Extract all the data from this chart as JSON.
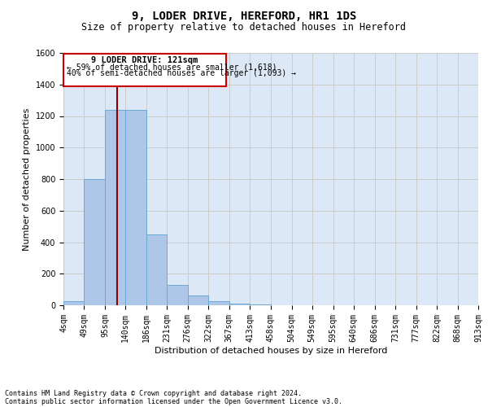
{
  "title_line1": "9, LODER DRIVE, HEREFORD, HR1 1DS",
  "title_line2": "Size of property relative to detached houses in Hereford",
  "xlabel": "Distribution of detached houses by size in Hereford",
  "ylabel": "Number of detached properties",
  "footnote1": "Contains HM Land Registry data © Crown copyright and database right 2024.",
  "footnote2": "Contains public sector information licensed under the Open Government Licence v3.0.",
  "annotation_line1": "9 LODER DRIVE: 121sqm",
  "annotation_line2": "← 59% of detached houses are smaller (1,618)",
  "annotation_line3": "40% of semi-detached houses are larger (1,093) →",
  "bar_edges": [
    4,
    49,
    95,
    140,
    186,
    231,
    276,
    322,
    367,
    413,
    458,
    504,
    549,
    595,
    640,
    686,
    731,
    777,
    822,
    868,
    913
  ],
  "bar_heights": [
    25,
    800,
    1240,
    1240,
    450,
    130,
    60,
    25,
    10,
    5,
    2,
    1,
    1,
    0,
    0,
    0,
    0,
    0,
    0,
    0
  ],
  "bar_color": "#aec6e8",
  "bar_edge_color": "#6aaad4",
  "property_size": 121,
  "vline_color": "#8b0000",
  "annotation_box_color": "#cc0000",
  "ylim": [
    0,
    1600
  ],
  "yticks": [
    0,
    200,
    400,
    600,
    800,
    1000,
    1200,
    1400,
    1600
  ],
  "grid_color": "#cccccc",
  "bg_color": "#dce8f5",
  "title_fontsize": 10,
  "subtitle_fontsize": 8.5,
  "axis_label_fontsize": 8,
  "tick_fontsize": 7,
  "ann_fontsize": 7,
  "footnote_fontsize": 6
}
